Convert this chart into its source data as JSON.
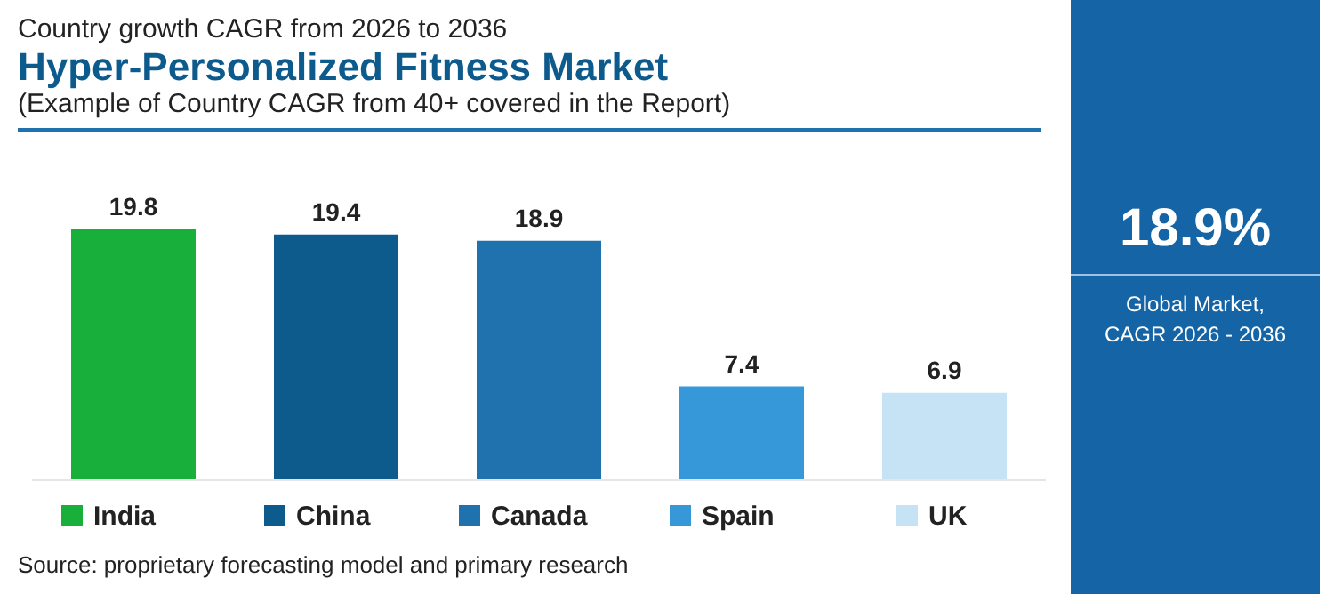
{
  "chart_data": {
    "type": "bar",
    "title": "Hyper-Personalized Fitness Market",
    "subtitle": "Country growth CAGR from 2026 to 2036\n(Example of Country CAGR from 40+ covered in the Report)",
    "categories": [
      "India",
      "China",
      "Canada",
      "Spain",
      "UK"
    ],
    "values": [
      19.8,
      19.4,
      18.9,
      7.4,
      6.9
    ],
    "colors": [
      "#18b03a",
      "#0d5a8c",
      "#1f72ad",
      "#3698d8",
      "#c6e3f5"
    ],
    "data_labels": true,
    "tick_labels": "x",
    "annotations": [
      "18.9%",
      "Global Market, CAGR 2026 - 2036",
      "Source: proprietary forecasting model and primary research"
    ]
  }
}
